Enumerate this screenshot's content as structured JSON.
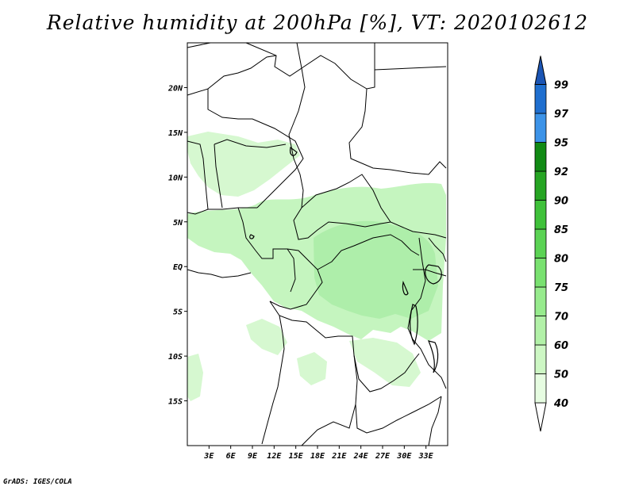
{
  "title": "Relative humidity at 200hPa [%], VT: 2020102612",
  "credit": "GrADS: IGES/COLA",
  "chart_data": {
    "type": "map",
    "variable": "Relative humidity",
    "level": "200hPa",
    "units": "%",
    "valid_time": "2020102612",
    "lon_range": [
      0,
      36
    ],
    "lat_range": [
      -20,
      25
    ],
    "lat_labels": [
      "20N",
      "15N",
      "10N",
      "5N",
      "EQ",
      "5S",
      "10S",
      "15S"
    ],
    "lat_values": [
      20,
      15,
      10,
      5,
      0,
      -5,
      -10,
      -15
    ],
    "lon_labels": [
      "3E",
      "6E",
      "9E",
      "12E",
      "15E",
      "18E",
      "21E",
      "24E",
      "27E",
      "30E",
      "33E"
    ],
    "lon_values": [
      3,
      6,
      9,
      12,
      15,
      18,
      21,
      24,
      27,
      30,
      33
    ],
    "colorbar": {
      "levels": [
        "40",
        "50",
        "60",
        "70",
        "75",
        "80",
        "85",
        "90",
        "92",
        "95",
        "97",
        "99"
      ],
      "colors": [
        "#ffffff",
        "#e6fce1",
        "#cdf7c4",
        "#b2f1a8",
        "#97eb8d",
        "#79e170",
        "#5bd354",
        "#3fc13a",
        "#26a523",
        "#118a14",
        "#3c93e8",
        "#1f6fcf",
        "#1b55b4"
      ]
    }
  },
  "colors": {
    "land_fill": "#ffffff",
    "frame": "#000000",
    "humid_light": "#c5f5bf",
    "humid_mid": "#aeeeaa"
  }
}
